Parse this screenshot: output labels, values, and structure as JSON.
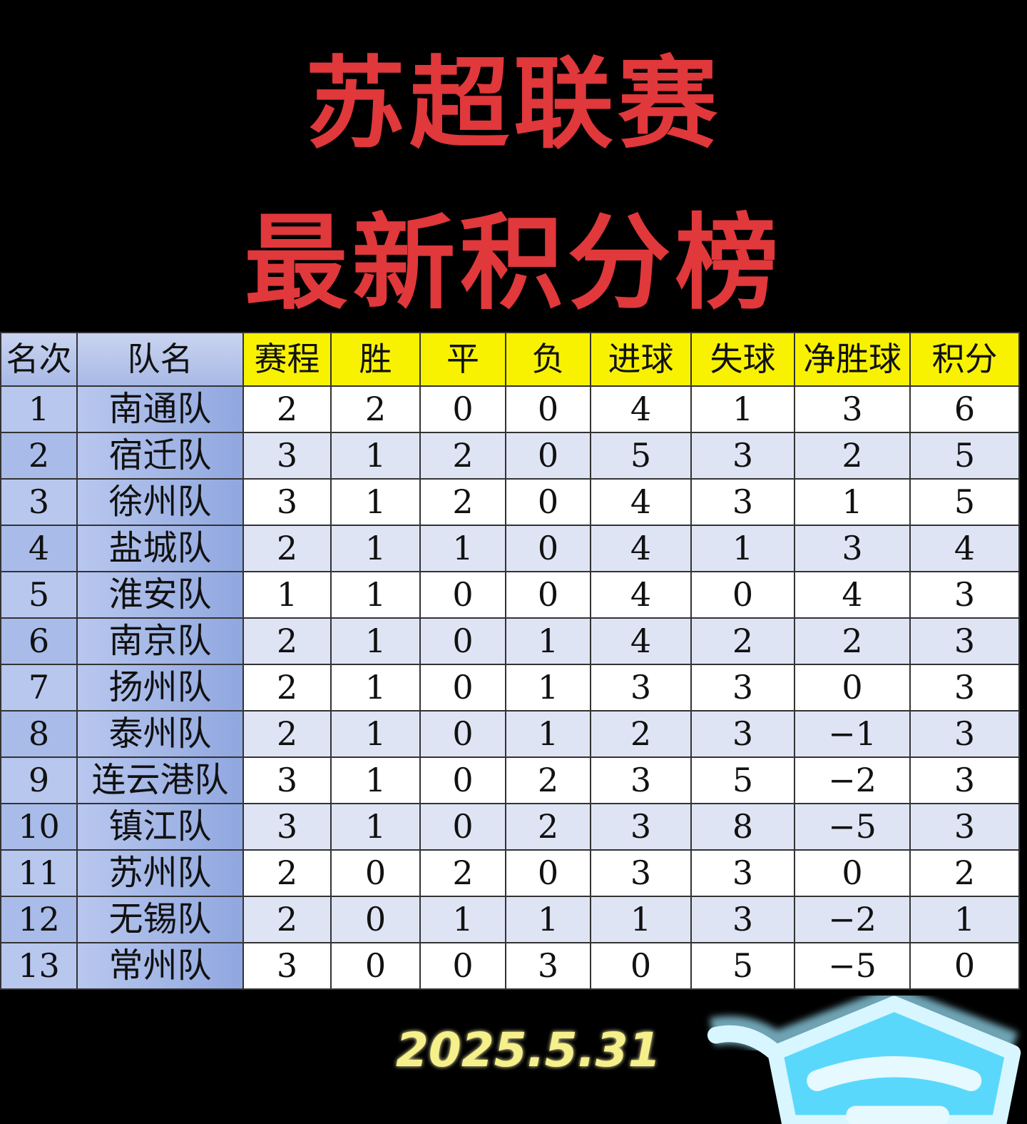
{
  "title": {
    "line1": "苏超联赛",
    "line2": "最新积分榜"
  },
  "table": {
    "headers": [
      "名次",
      "队名",
      "赛程",
      "胜",
      "平",
      "负",
      "进球",
      "失球",
      "净胜球",
      "积分"
    ],
    "rows": [
      [
        "1",
        "南通队",
        "2",
        "2",
        "0",
        "0",
        "4",
        "1",
        "3",
        "6"
      ],
      [
        "2",
        "宿迁队",
        "3",
        "1",
        "2",
        "0",
        "5",
        "3",
        "2",
        "5"
      ],
      [
        "3",
        "徐州队",
        "3",
        "1",
        "2",
        "0",
        "4",
        "3",
        "1",
        "5"
      ],
      [
        "4",
        "盐城队",
        "2",
        "1",
        "1",
        "0",
        "4",
        "1",
        "3",
        "4"
      ],
      [
        "5",
        "淮安队",
        "1",
        "1",
        "0",
        "0",
        "4",
        "0",
        "4",
        "3"
      ],
      [
        "6",
        "南京队",
        "2",
        "1",
        "0",
        "1",
        "4",
        "2",
        "2",
        "3"
      ],
      [
        "7",
        "扬州队",
        "2",
        "1",
        "0",
        "1",
        "3",
        "3",
        "0",
        "3"
      ],
      [
        "8",
        "泰州队",
        "2",
        "1",
        "0",
        "1",
        "2",
        "3",
        "−1",
        "3"
      ],
      [
        "9",
        "连云港队",
        "3",
        "1",
        "0",
        "2",
        "3",
        "5",
        "−2",
        "3"
      ],
      [
        "10",
        "镇江队",
        "3",
        "1",
        "0",
        "2",
        "3",
        "8",
        "−5",
        "3"
      ],
      [
        "11",
        "苏州队",
        "2",
        "0",
        "2",
        "0",
        "3",
        "3",
        "0",
        "2"
      ],
      [
        "12",
        "无锡队",
        "2",
        "0",
        "1",
        "1",
        "1",
        "3",
        "−2",
        "1"
      ],
      [
        "13",
        "常州队",
        "3",
        "0",
        "0",
        "3",
        "0",
        "5",
        "−5",
        "0"
      ]
    ]
  },
  "date": "2025.5.31",
  "colors": {
    "title": "#e0383b",
    "header_yellow": "#f8f200",
    "team_blue": "#90a7df",
    "date": "#f5f08a",
    "mask": "#5ad8fb"
  },
  "decoration": {
    "icon": "face-mask-icon"
  }
}
